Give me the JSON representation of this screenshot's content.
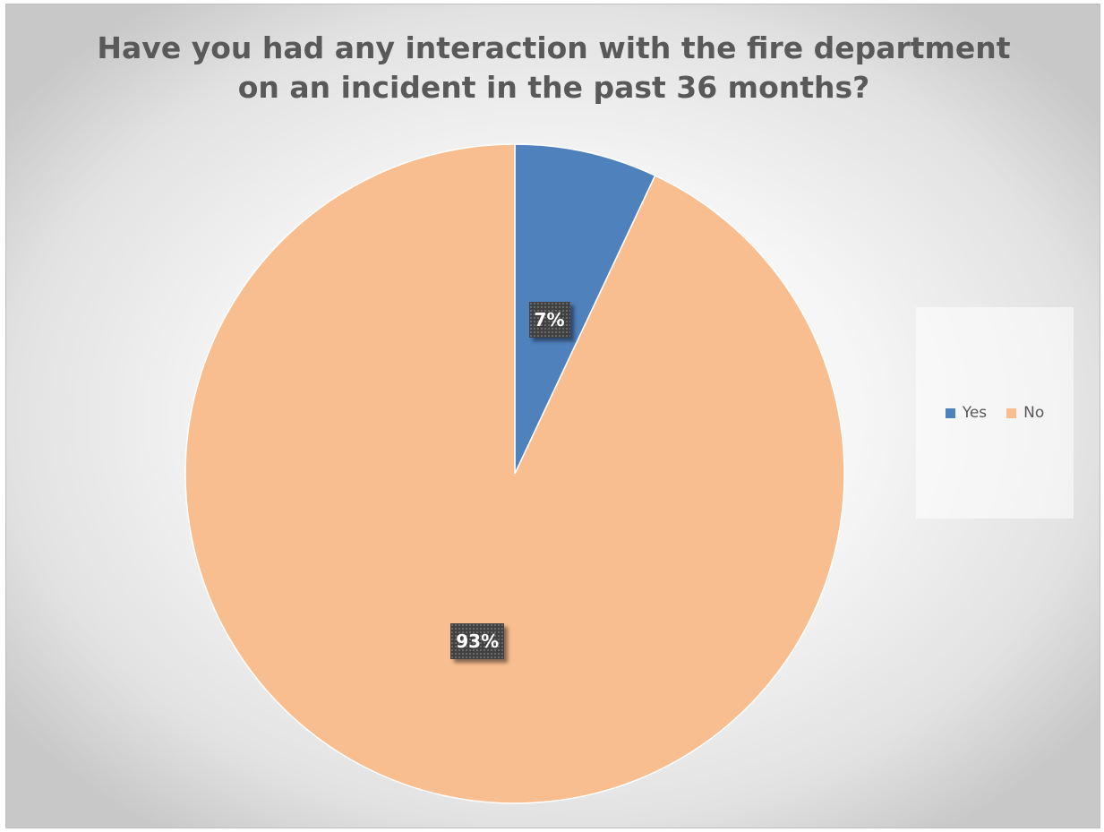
{
  "chart_data": {
    "type": "pie",
    "title_lines": [
      "Have you had any interaction with the fire department",
      "on an incident in the past 36 months?"
    ],
    "categories": [
      "Yes",
      "No"
    ],
    "values": [
      7,
      93
    ],
    "data_labels": [
      "7%",
      "93%"
    ],
    "colors": [
      "#4f81bd",
      "#f9be8f"
    ],
    "start_angle_deg": 0,
    "direction": "clockwise",
    "legend_position": "right",
    "legend": [
      "Yes",
      "No"
    ]
  }
}
